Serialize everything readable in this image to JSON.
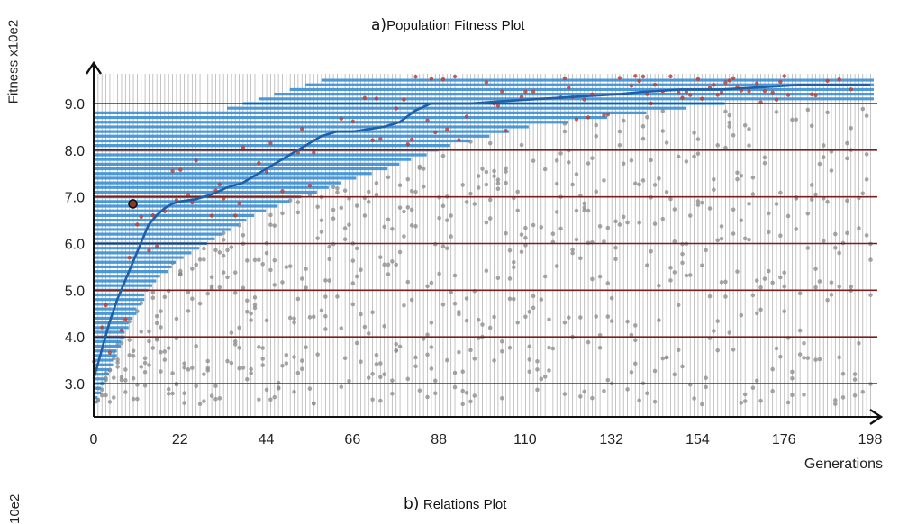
{
  "figure": {
    "title_a_prefix": "a)",
    "title_a_text": "Population Fitness Plot",
    "title_b_prefix": "b)",
    "title_b_text": "Relations Plot",
    "bottom_ylabel_fragment": "10e2"
  },
  "chart_data": {
    "type": "scatter",
    "title": "a)Population Fitness Plot",
    "xlabel": "Generations",
    "ylabel": "Fitness x10e2",
    "xlim": [
      0,
      200
    ],
    "ylim": [
      2.3,
      9.9
    ],
    "x_ticks": [
      0,
      22,
      44,
      66,
      88,
      110,
      132,
      154,
      176,
      198
    ],
    "y_ticks": [
      3.0,
      4.0,
      5.0,
      6.0,
      7.0,
      8.0,
      9.0
    ],
    "grid": true,
    "colors": {
      "best_line": "#1f5fa8",
      "band": "#3a8fd4",
      "selected": "#c0392b",
      "others": "#8a8a8a",
      "hgrid": "#7a1f1f",
      "vgrid": "#b5b5b5"
    },
    "series": [
      {
        "name": "",
        "role": "best fitness line",
        "x": [
          0,
          2,
          4,
          6,
          8,
          10,
          12,
          14,
          16,
          18,
          20,
          22,
          26,
          30,
          34,
          38,
          42,
          46,
          50,
          54,
          58,
          62,
          66,
          70,
          74,
          78,
          82,
          86,
          90,
          96,
          104,
          114,
          124,
          134,
          140,
          150,
          160,
          170,
          180,
          190,
          198
        ],
        "y": [
          3.1,
          3.7,
          4.3,
          4.8,
          5.2,
          5.6,
          6.0,
          6.4,
          6.6,
          6.75,
          6.85,
          6.9,
          6.95,
          7.05,
          7.2,
          7.3,
          7.5,
          7.7,
          7.9,
          8.1,
          8.3,
          8.4,
          8.4,
          8.45,
          8.5,
          8.6,
          8.85,
          9.0,
          9.0,
          9.0,
          9.05,
          9.1,
          9.15,
          9.2,
          9.25,
          9.3,
          9.3,
          9.35,
          9.4,
          9.4,
          9.4
        ]
      },
      {
        "name": "",
        "role": "population lower bound (blue band floor)",
        "x": [
          0,
          4,
          8,
          12,
          16,
          20,
          24,
          28,
          32,
          36,
          40,
          44,
          50,
          56,
          62,
          70,
          80,
          90,
          100,
          110,
          120,
          130,
          140,
          150,
          160,
          170,
          180,
          198
        ],
        "y": [
          2.7,
          3.6,
          4.3,
          4.9,
          5.3,
          5.6,
          5.8,
          6.0,
          6.2,
          6.4,
          6.6,
          6.75,
          6.95,
          7.1,
          7.3,
          7.5,
          7.8,
          8.1,
          8.3,
          8.5,
          8.6,
          8.7,
          8.8,
          8.9,
          9.0,
          9.0,
          9.05,
          9.1
        ]
      }
    ],
    "highlight_point": {
      "x": 10,
      "y": 6.85
    }
  }
}
